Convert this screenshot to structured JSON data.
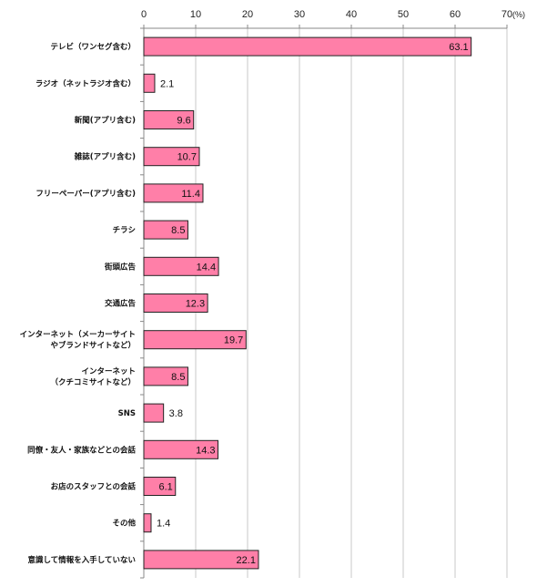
{
  "chart_data": {
    "type": "bar",
    "orientation": "horizontal",
    "unit": "(%)",
    "xlim": [
      0,
      70
    ],
    "ticks": [
      0,
      10,
      20,
      30,
      40,
      50,
      60,
      70
    ],
    "grid": true,
    "bar_color": "#ff7fa8",
    "categories": [
      "テレビ（ワンセグ含む）",
      "ラジオ（ネットラジオ含む）",
      "新聞(アプリ含む)",
      "雑誌(アプリ含む)",
      "フリーペーパー(アプリ含む)",
      "チラシ",
      "街頭広告",
      "交通広告",
      "インターネット（メーカーサイトやブランドサイトなど）",
      "インターネット（クチコミサイトなど）",
      "SNS",
      "同僚・友人・家族などとの会話",
      "お店のスタッフとの会話",
      "その他",
      "意識して情報を入手していない"
    ],
    "label_lines": [
      [
        "テレビ（ワンセグ含む）"
      ],
      [
        "ラジオ（ネットラジオ含む）"
      ],
      [
        "新聞(アプリ含む)"
      ],
      [
        "雑誌(アプリ含む)"
      ],
      [
        "フリーペーパー(アプリ含む)"
      ],
      [
        "チラシ"
      ],
      [
        "街頭広告"
      ],
      [
        "交通広告"
      ],
      [
        "インターネット（メーカーサイト",
        "やブランドサイトなど）"
      ],
      [
        "インターネット",
        "（クチコミサイトなど）"
      ],
      [
        "SNS"
      ],
      [
        "同僚・友人・家族などとの会話"
      ],
      [
        "お店のスタッフとの会話"
      ],
      [
        "その他"
      ],
      [
        "意識して情報を入手していない"
      ]
    ],
    "values": [
      63.1,
      2.1,
      9.6,
      10.7,
      11.4,
      8.5,
      14.4,
      12.3,
      19.7,
      8.5,
      3.8,
      14.3,
      6.1,
      1.4,
      22.1
    ]
  }
}
